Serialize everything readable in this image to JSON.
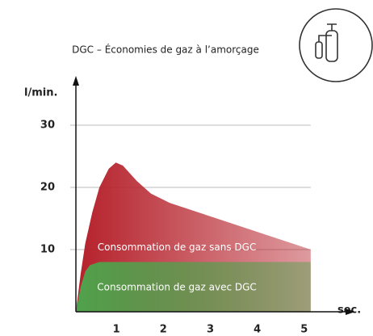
{
  "chart_data": {
    "type": "area",
    "title": "DGC – Économies de gaz à l’amorçage",
    "ylabel": "l/min.",
    "xlabel": "sec.",
    "xlim": [
      0,
      6
    ],
    "ylim": [
      0,
      35
    ],
    "xticks": [
      1,
      2,
      3,
      4,
      5
    ],
    "yticks": [
      10,
      20,
      30
    ],
    "grid": true,
    "series": [
      {
        "name": "Consommation de gaz sans DGC",
        "color": "#b5202a",
        "x": [
          0,
          0.1,
          0.2,
          0.35,
          0.5,
          0.7,
          0.85,
          1.0,
          1.3,
          1.6,
          2.0,
          3.0,
          4.0,
          5.0
        ],
        "values": [
          0,
          6,
          11,
          16,
          20,
          23,
          24,
          23.5,
          21,
          19,
          17.5,
          15,
          12.5,
          10
        ]
      },
      {
        "name": "Consommation de gaz avec DGC",
        "color": "#4fa24c",
        "x": [
          0,
          0.1,
          0.2,
          0.3,
          0.5,
          5.0
        ],
        "values": [
          0,
          4,
          6.5,
          7.5,
          8,
          8
        ]
      }
    ]
  }
}
